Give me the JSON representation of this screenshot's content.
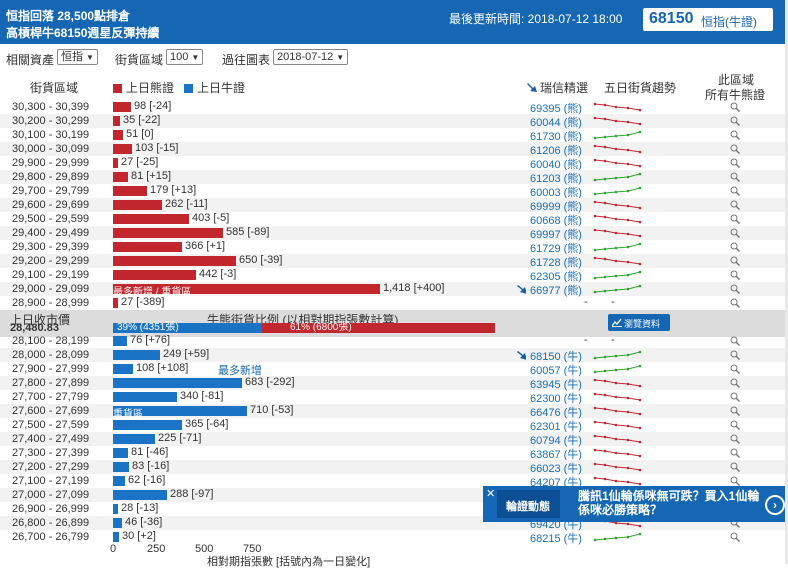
{
  "header": {
    "title_line1": "恒指回落 28,500點排倉",
    "title_line2": "高槓桿牛68150週星反彈持續",
    "update_time": "最後更新時間: 2018-07-12 18:00",
    "code": "68150",
    "code_type": "恒指(牛證)"
  },
  "filters": {
    "asset_label": "相關資產",
    "asset_value": "恒指",
    "range_label": "街貨區域",
    "range_value": "100",
    "date_label": "過往圖表",
    "date_value": "2018-07-12"
  },
  "columns": {
    "range": "街貨區域",
    "bear_legend": "上日熊證",
    "bull_legend": "上日牛證",
    "featured": "瑞信精選",
    "trend": "五日街貨趨勢",
    "all_line1": "此區域",
    "all_line2": "所有牛熊證"
  },
  "colors": {
    "bear": "#c1272d",
    "bull": "#1a73c5",
    "header": "#1566b3",
    "spark": "#2aa52a"
  },
  "axis_max": 1500,
  "bear_rows": [
    {
      "range": "30,300 - 30,399",
      "value": 98,
      "change": "-24",
      "code": "69395 (熊)",
      "trend": "down"
    },
    {
      "range": "30,200 - 30,299",
      "value": 35,
      "change": "-22",
      "code": "60044 (熊)",
      "trend": "down"
    },
    {
      "range": "30,100 - 30,199",
      "value": 51,
      "change": "0",
      "code": "61730 (熊)",
      "trend": "up"
    },
    {
      "range": "30,000 - 30,099",
      "value": 103,
      "change": "-15",
      "code": "61206 (熊)",
      "trend": "down"
    },
    {
      "range": "29,900 - 29,999",
      "value": 27,
      "change": "-25",
      "code": "60040 (熊)",
      "trend": "down"
    },
    {
      "range": "29,800 - 29,899",
      "value": 81,
      "change": "+15",
      "code": "61203 (熊)",
      "trend": "up"
    },
    {
      "range": "29,700 - 29,799",
      "value": 179,
      "change": "+13",
      "code": "60003 (熊)",
      "trend": "up"
    },
    {
      "range": "29,600 - 29,699",
      "value": 262,
      "change": "-11",
      "code": "69999 (熊)",
      "trend": "down"
    },
    {
      "range": "29,500 - 29,599",
      "value": 403,
      "change": "-5",
      "code": "60668 (熊)",
      "trend": "down"
    },
    {
      "range": "29,400 - 29,499",
      "value": 585,
      "change": "-89",
      "code": "69997 (熊)",
      "trend": "down"
    },
    {
      "range": "29,300 - 29,399",
      "value": 366,
      "change": "+1",
      "code": "61729 (熊)",
      "trend": "up"
    },
    {
      "range": "29,200 - 29,299",
      "value": 650,
      "change": "-39",
      "code": "61728 (熊)",
      "trend": "down"
    },
    {
      "range": "29,100 - 29,199",
      "value": 442,
      "change": "-3",
      "code": "62305 (熊)",
      "trend": "up"
    },
    {
      "range": "29,000 - 29,099",
      "value": 1418,
      "change": "+400",
      "code": "66977 (熊)",
      "trend": "up",
      "market": true,
      "bar_text": "最多新增 / 重貨區"
    },
    {
      "range": "28,900 - 28,999",
      "value": 27,
      "change": "-389",
      "code": "-",
      "trend": "none"
    }
  ],
  "mid_band": {
    "close_label": "上日收市價",
    "close_price": "28,480.83",
    "ratio_title": "牛熊街貨比例 (以相對期指張數計算)",
    "bull_pct": 39,
    "bull_text": "39% (4351張)",
    "bear_text": "61% (6800張)",
    "button_label": "瀏覽資料"
  },
  "bull_rows": [
    {
      "range": "28,100 - 28,199",
      "value": 76,
      "change": "+76",
      "code": "-",
      "trend": "none"
    },
    {
      "range": "28,000 - 28,099",
      "value": 249,
      "change": "+59",
      "code": "68150 (牛)",
      "trend": "up",
      "market": true
    },
    {
      "range": "27,900 - 27,999",
      "value": 108,
      "change": "+108",
      "code": "60057 (牛)",
      "trend": "up",
      "annotation": "最多新增"
    },
    {
      "range": "27,800 - 27,899",
      "value": 683,
      "change": "-292",
      "code": "63945 (牛)",
      "trend": "down"
    },
    {
      "range": "27,700 - 27,799",
      "value": 340,
      "change": "-81",
      "code": "62300 (牛)",
      "trend": "down"
    },
    {
      "range": "27,600 - 27,699",
      "value": 710,
      "change": "-53",
      "code": "66476 (牛)",
      "trend": "down",
      "bar_text": "重貨區"
    },
    {
      "range": "27,500 - 27,599",
      "value": 365,
      "change": "-64",
      "code": "62301 (牛)",
      "trend": "down"
    },
    {
      "range": "27,400 - 27,499",
      "value": 225,
      "change": "-71",
      "code": "60794 (牛)",
      "trend": "down"
    },
    {
      "range": "27,300 - 27,399",
      "value": 81,
      "change": "-46",
      "code": "63867 (牛)",
      "trend": "down"
    },
    {
      "range": "27,200 - 27,299",
      "value": 83,
      "change": "-16",
      "code": "66023 (牛)",
      "trend": "down"
    },
    {
      "range": "27,100 - 27,199",
      "value": 62,
      "change": "-16",
      "code": "64207 (牛)",
      "trend": "down"
    },
    {
      "range": "27,000 - 27,099",
      "value": 288,
      "change": "-97",
      "code": "",
      "trend": "none"
    },
    {
      "range": "26,900 - 26,999",
      "value": 28,
      "change": "-13",
      "code": "",
      "trend": "none"
    },
    {
      "range": "26,800 - 26,899",
      "value": 46,
      "change": "-36",
      "code": "69420 (牛)",
      "trend": "down"
    },
    {
      "range": "26,700 - 26,799",
      "value": 30,
      "change": "+2",
      "code": "68215 (牛)",
      "trend": "up"
    }
  ],
  "axis": {
    "ticks": [
      "0",
      "250",
      "500",
      "750"
    ],
    "title": "相對期指張數 [括號內為一日變化]"
  },
  "popup": {
    "tag": "輪證動態",
    "text": "騰訊1仙輪係咪無可跌？買入1仙輪係咪必勝策略？"
  }
}
